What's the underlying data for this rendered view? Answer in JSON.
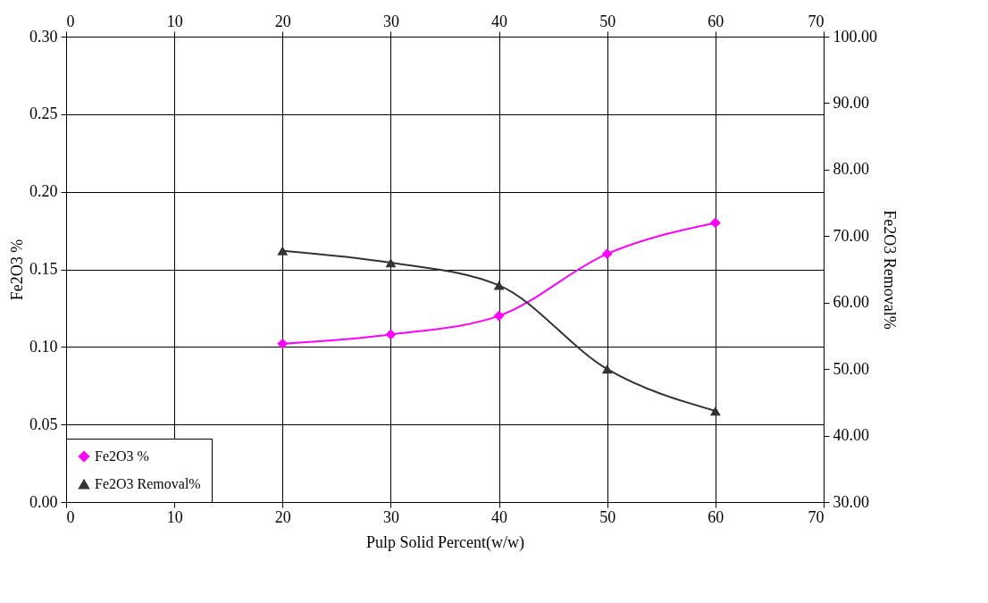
{
  "chart_data": {
    "type": "line",
    "xlabel": "Pulp Solid Percent(w/w)",
    "ylabel": "Fe2O3 %",
    "y2label": "Fe2O3 Removal%",
    "x": [
      20,
      30,
      40,
      50,
      60
    ],
    "series": [
      {
        "name": "Fe2O3 %",
        "color": "#ff00ff",
        "marker": "diamond",
        "values": [
          0.102,
          0.108,
          0.12,
          0.16,
          0.18
        ]
      },
      {
        "name": "Fe2O3 Removal%",
        "color": "#333333",
        "marker": "triangle",
        "axis": "y2",
        "values": [
          67.8,
          66.0,
          62.6,
          50.0,
          43.7
        ]
      }
    ],
    "xlim": [
      0,
      70
    ],
    "xticks": [
      0,
      10,
      20,
      30,
      40,
      50,
      60,
      70
    ],
    "x2lim": [
      0,
      70
    ],
    "x2ticks": [
      0,
      10,
      20,
      30,
      40,
      50,
      60,
      70
    ],
    "ylim": [
      0,
      0.3
    ],
    "yticks": [
      {
        "value": 0,
        "label": "0.00"
      },
      {
        "value": 0.05,
        "label": "0.05"
      },
      {
        "value": 0.1,
        "label": "0.10"
      },
      {
        "value": 0.15,
        "label": "0.15"
      },
      {
        "value": 0.2,
        "label": "0.20"
      },
      {
        "value": 0.25,
        "label": "0.25"
      },
      {
        "value": 0.3,
        "label": "0.30"
      }
    ],
    "y2lim": [
      30,
      100
    ],
    "y2ticks": [
      {
        "value": 30,
        "label": "30.00"
      },
      {
        "value": 40,
        "label": "40.00"
      },
      {
        "value": 50,
        "label": "50.00"
      },
      {
        "value": 60,
        "label": "60.00"
      },
      {
        "value": 70,
        "label": "70.00"
      },
      {
        "value": 80,
        "label": "80.00"
      },
      {
        "value": 90,
        "label": "90.00"
      },
      {
        "value": 100,
        "label": "100.00"
      }
    ],
    "grid": true,
    "legend": "bottom left",
    "line_style": "solid"
  }
}
